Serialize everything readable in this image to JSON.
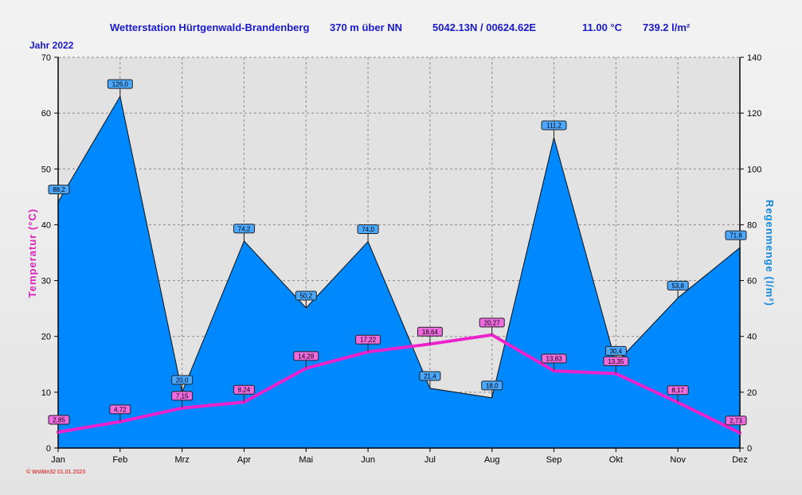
{
  "header": {
    "station": "Wetterstation Hürtgenwald-Brandenberg",
    "altitude": "370 m über NN",
    "coordinates": "5042.13N / 00624.62E",
    "mean_temp": "11.00 °C",
    "total_rain": "739.2 l/m²"
  },
  "year_label": "Jahr  2022",
  "footer": "© WsWin32  01.01.2023",
  "colors": {
    "rain_fill": "#0088ff",
    "temp_line": "#ee22cc",
    "header_text": "#1a1acc"
  },
  "chart_data": {
    "type": "area",
    "categories": [
      "Jan",
      "Feb",
      "Mrz",
      "Apr",
      "Mai",
      "Jun",
      "Jul",
      "Aug",
      "Sep",
      "Okt",
      "Nov",
      "Dez"
    ],
    "series": [
      {
        "type": "area",
        "axis": "right",
        "values": [
          88.2,
          126.0,
          20.0,
          74.2,
          50.2,
          74.0,
          21.4,
          18.0,
          111.2,
          30.4,
          53.8,
          71.8
        ],
        "labels": [
          "88,2",
          "126,0",
          "20,0",
          "74,2",
          "50,2",
          "74,0",
          "21,4",
          "18,0",
          "111,2",
          "30,4",
          "53,8",
          "71,8"
        ]
      },
      {
        "type": "line",
        "axis": "left",
        "values": [
          2.85,
          4.72,
          7.15,
          8.24,
          14.28,
          17.22,
          18.64,
          20.27,
          13.83,
          13.35,
          8.17,
          2.73
        ],
        "labels": [
          "2,85",
          "4,72",
          "7,15",
          "8,24",
          "14,28",
          "17,22",
          "18,64",
          "20,27",
          "13,83",
          "13,35",
          "8,17",
          "2,73"
        ]
      }
    ],
    "ylabel_left": "Temperatur  (°C)",
    "ylabel_right": "Regenmenge  (l/m²)",
    "ylim_left": [
      0,
      70
    ],
    "yticks_left": [
      0,
      10,
      20,
      30,
      40,
      50,
      60,
      70
    ],
    "ylim_right": [
      0,
      140
    ],
    "yticks_right": [
      0,
      20,
      40,
      60,
      80,
      100,
      120,
      140
    ],
    "grid": true
  }
}
